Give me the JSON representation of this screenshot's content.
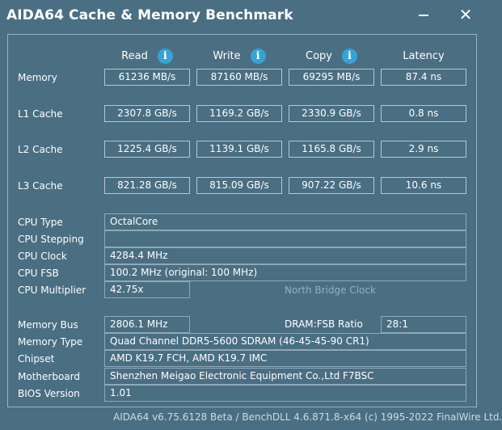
{
  "window": {
    "title": "AIDA64 Cache & Memory Benchmark"
  },
  "columns": [
    "Read",
    "Write",
    "Copy",
    "Latency"
  ],
  "bench": [
    {
      "label": "Memory",
      "read": "61236 MB/s",
      "write": "87160 MB/s",
      "copy": "69295 MB/s",
      "latency": "87.4 ns"
    },
    {
      "label": "L1 Cache",
      "read": "2307.8 GB/s",
      "write": "1169.2 GB/s",
      "copy": "2330.9 GB/s",
      "latency": "0.8 ns"
    },
    {
      "label": "L2 Cache",
      "read": "1225.4 GB/s",
      "write": "1139.1 GB/s",
      "copy": "1165.8 GB/s",
      "latency": "2.9 ns"
    },
    {
      "label": "L3 Cache",
      "read": "821.28 GB/s",
      "write": "815.09 GB/s",
      "copy": "907.22 GB/s",
      "latency": "10.6 ns"
    }
  ],
  "info": {
    "cpu_type": {
      "label": "CPU Type",
      "value": "OctalCore"
    },
    "cpu_stepping": {
      "label": "CPU Stepping",
      "value": ""
    },
    "cpu_clock": {
      "label": "CPU Clock",
      "value": "4284.4 MHz"
    },
    "cpu_fsb": {
      "label": "CPU FSB",
      "value": "100.2 MHz  (original: 100 MHz)"
    },
    "cpu_multiplier": {
      "label": "CPU Multiplier",
      "value": "42.75x"
    },
    "north_bridge_clock": {
      "label": "North Bridge Clock",
      "value": ""
    },
    "memory_bus": {
      "label": "Memory Bus",
      "value": "2806.1 MHz"
    },
    "dram_fsb_ratio": {
      "label": "DRAM:FSB Ratio",
      "value": "28:1"
    },
    "memory_type": {
      "label": "Memory Type",
      "value": "Quad Channel DDR5-5600 SDRAM  (46-45-45-90 CR1)"
    },
    "chipset": {
      "label": "Chipset",
      "value": "AMD K19.7 FCH, AMD K19.7 IMC"
    },
    "motherboard": {
      "label": "Motherboard",
      "value": "Shenzhen Meigao Electronic Equipment Co.,Ltd F7BSC"
    },
    "bios_version": {
      "label": "BIOS Version",
      "value": "1.01"
    }
  },
  "footer": "AIDA64 v6.75.6128 Beta / BenchDLL 4.6.871.8-x64  (c) 1995-2022 FinalWire Ltd.",
  "icons": {
    "info": "info-icon",
    "minimize": "minimize-icon",
    "close": "close-icon"
  },
  "colors": {
    "background": "#4a6e82",
    "info_icon": "#36a3d6",
    "muted_label": "#8fb3c4"
  }
}
